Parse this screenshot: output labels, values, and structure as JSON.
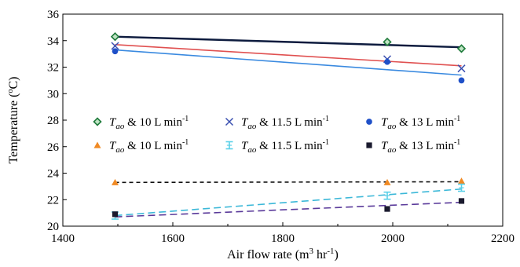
{
  "chart_data": {
    "type": "scatter",
    "xlabel": "Air flow rate (m",
    "xlabel_sup1": "3",
    "xlabel_mid": " hr",
    "xlabel_sup2": "-1",
    "xlabel_end": ")",
    "ylabel": "Temperature (",
    "ylabel_sup": "o",
    "ylabel_end": "C)",
    "xlim": [
      1400,
      2200
    ],
    "ylim": [
      20,
      36
    ],
    "xticks": [
      1400,
      1600,
      1800,
      2000,
      2200
    ],
    "yticks": [
      20,
      22,
      24,
      26,
      28,
      30,
      32,
      34,
      36
    ],
    "x": [
      1495,
      1990,
      2125
    ],
    "series": [
      {
        "name_var": "T",
        "name_sub": "ao",
        "name_rest": " & 10 L min",
        "name_sup": "-1",
        "marker": "diamond",
        "color": "#1e7a3a",
        "line_color": "#0d1b3e",
        "line_style": "solid",
        "values": [
          34.3,
          33.9,
          33.4
        ],
        "fit": [
          34.3,
          33.5
        ]
      },
      {
        "name_var": "T",
        "name_sub": "ao",
        "name_rest": " & 11.5 L min",
        "name_sup": "-1",
        "marker": "x",
        "color": "#3a4fb0",
        "line_color": "#e05050",
        "line_style": "solid",
        "values": [
          33.6,
          32.6,
          31.9
        ],
        "fit": [
          33.7,
          32.1
        ]
      },
      {
        "name_var": "T",
        "name_sub": "ao",
        "name_rest": " & 13 L min",
        "name_sup": "-1",
        "marker": "circle",
        "color": "#1f50c8",
        "line_color": "#3a8ae0",
        "line_style": "solid",
        "values": [
          33.2,
          32.4,
          31.0
        ],
        "fit": [
          33.3,
          31.4
        ]
      },
      {
        "name_var": "T",
        "name_sub": "ao",
        "name_rest": " & 10 L min",
        "name_sup": "-1",
        "marker": "triangle",
        "color": "#f08a24",
        "line_color": "#111111",
        "line_style": "dashed",
        "values": [
          23.3,
          23.3,
          23.4
        ],
        "fit": [
          23.3,
          23.35
        ]
      },
      {
        "name_var": "T",
        "name_sub": "ao",
        "name_rest": " & 11.5 L min",
        "name_sup": "-1",
        "marker": "star",
        "color": "#5ad0e8",
        "line_color": "#3cb8d8",
        "line_style": "dashed",
        "values": [
          20.8,
          22.3,
          22.9
        ],
        "fit": [
          20.8,
          22.8
        ]
      },
      {
        "name_var": "T",
        "name_sub": "ao",
        "name_rest": " & 13 L min",
        "name_sup": "-1",
        "marker": "square",
        "color": "#1a1a2e",
        "line_color": "#5a3a9a",
        "line_style": "dashed",
        "values": [
          20.9,
          21.3,
          21.9
        ],
        "fit": [
          20.7,
          21.8
        ]
      }
    ],
    "legend_position": "center",
    "grid": false
  }
}
